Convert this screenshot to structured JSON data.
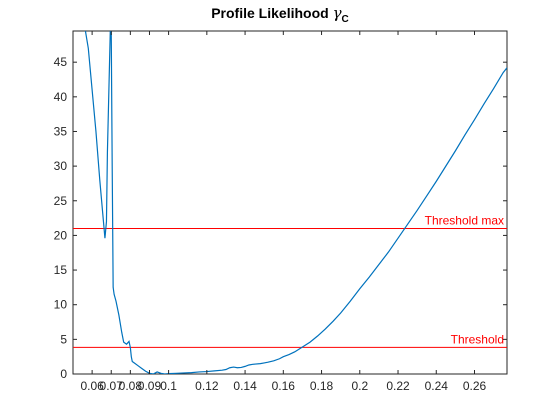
{
  "chart_data": {
    "type": "line",
    "title_text": "Profile Likelihood",
    "title_symbol": "γ",
    "title_subscript": "C",
    "xlim": [
      0.05,
      0.277
    ],
    "ylim": [
      0,
      49.5
    ],
    "x_ticks": [
      0.06,
      0.07,
      0.08,
      0.09,
      0.1,
      0.12,
      0.14,
      0.16,
      0.18,
      0.2,
      0.22,
      0.24,
      0.26
    ],
    "x_tick_labels": [
      "0.06",
      "0.07",
      "0.08",
      "0.09",
      "0.1",
      "0.12",
      "0.14",
      "0.16",
      "0.18",
      "0.2",
      "0.22",
      "0.24",
      "0.26"
    ],
    "y_ticks": [
      0,
      5,
      10,
      15,
      20,
      25,
      30,
      35,
      40,
      45
    ],
    "y_tick_labels": [
      "0",
      "5",
      "10",
      "15",
      "20",
      "25",
      "30",
      "35",
      "40",
      "45"
    ],
    "grid": false,
    "series": [
      {
        "color": "#0072BD",
        "x": [
          0.0565,
          0.058,
          0.06,
          0.062,
          0.064,
          0.0667,
          0.0675,
          0.068,
          0.0695,
          0.07,
          0.0705,
          0.071,
          0.0715,
          0.0725,
          0.074,
          0.0755,
          0.0765,
          0.078,
          0.0793,
          0.08,
          0.0805,
          0.081,
          0.082,
          0.084,
          0.086,
          0.088,
          0.09,
          0.092,
          0.094,
          0.096,
          0.098,
          0.1,
          0.104,
          0.108,
          0.112,
          0.116,
          0.12,
          0.124,
          0.128,
          0.13,
          0.132,
          0.134,
          0.136,
          0.138,
          0.14,
          0.142,
          0.144,
          0.148,
          0.15,
          0.152,
          0.155,
          0.158,
          0.16,
          0.163,
          0.166,
          0.17,
          0.174,
          0.178,
          0.182,
          0.186,
          0.19,
          0.195,
          0.2,
          0.205,
          0.21,
          0.215,
          0.22,
          0.225,
          0.23,
          0.235,
          0.24,
          0.245,
          0.25,
          0.255,
          0.26,
          0.265,
          0.27,
          0.275,
          0.277
        ],
        "y": [
          49.5,
          47,
          41,
          35,
          28,
          19.6,
          22,
          32,
          49.5,
          49.5,
          30,
          12.5,
          11.5,
          10.5,
          8.5,
          6,
          4.6,
          4.3,
          4.7,
          3.8,
          2.5,
          1.8,
          1.6,
          1.2,
          0.8,
          0.4,
          0.1,
          0.0,
          0.3,
          0.1,
          0.0,
          0.05,
          0.1,
          0.15,
          0.2,
          0.3,
          0.35,
          0.45,
          0.55,
          0.65,
          0.9,
          1.0,
          0.9,
          0.95,
          1.1,
          1.3,
          1.4,
          1.5,
          1.6,
          1.7,
          1.9,
          2.2,
          2.5,
          2.8,
          3.2,
          3.9,
          4.6,
          5.5,
          6.5,
          7.6,
          8.8,
          10.5,
          12.3,
          14.0,
          15.8,
          17.6,
          19.6,
          21.6,
          23.6,
          25.7,
          27.8,
          30.0,
          32.2,
          34.5,
          36.7,
          39.0,
          41.2,
          43.5,
          44.2
        ]
      }
    ],
    "thresholds": [
      {
        "label": "Threshold max",
        "value": 21.0,
        "color": "#FF0000"
      },
      {
        "label": "Threshold",
        "value": 3.84,
        "color": "#FF0000"
      }
    ]
  }
}
